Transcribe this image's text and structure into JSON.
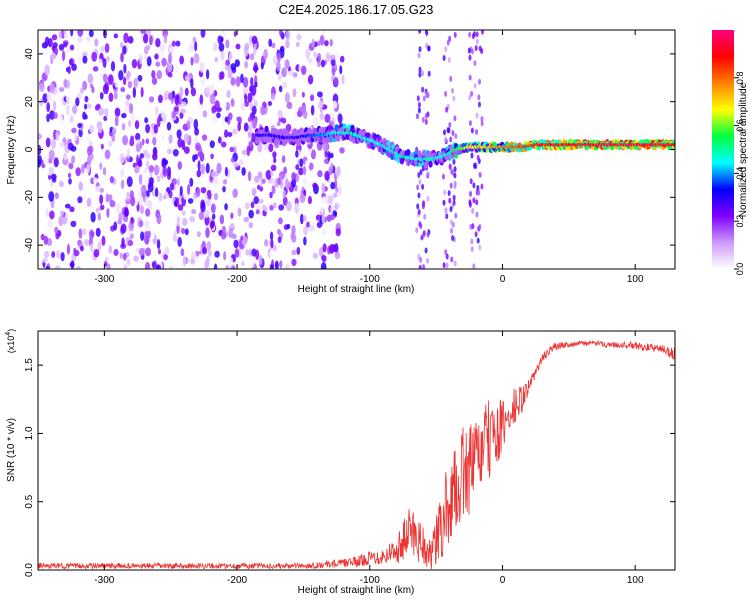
{
  "figure": {
    "title": "C2E4.2025.186.17.05.G23"
  },
  "chart_data": [
    {
      "type": "heatmap",
      "title": "C2E4.2025.186.17.05.G23",
      "xlabel": "Height of straight line (km)",
      "ylabel": "Frequency (Hz)",
      "xlim": [
        -350,
        130
      ],
      "ylim": [
        -50,
        50
      ],
      "x_ticks": [
        -300,
        -200,
        -100,
        0,
        100
      ],
      "y_ticks": [
        -40,
        -20,
        0,
        20,
        40
      ],
      "colorbar": {
        "label": "Normalized spectral amplitude",
        "range": [
          0,
          1
        ],
        "ticks": [
          0.0,
          0.2,
          0.4,
          0.6,
          0.8
        ],
        "colors": [
          "#ffffff",
          "#cc99ff",
          "#8000ff",
          "#0000ff",
          "#00ffff",
          "#00ff40",
          "#ffff00",
          "#ff8000",
          "#ff0000",
          "#ff0080"
        ]
      },
      "ridge": {
        "x": [
          -185,
          -175,
          -165,
          -155,
          -145,
          -135,
          -125,
          -115,
          -105,
          -95,
          -85,
          -75,
          -65,
          -55,
          -45,
          -35,
          -25,
          -15,
          -5,
          5,
          15,
          25,
          40,
          60,
          80,
          100,
          120,
          130
        ],
        "y": [
          6,
          6,
          5,
          5,
          6,
          6,
          7,
          7,
          5,
          3,
          0,
          -3,
          -4,
          -4,
          -3,
          0,
          1,
          1,
          1,
          1,
          1,
          2,
          2,
          2,
          2,
          2,
          2,
          2
        ],
        "amplitude": [
          0.3,
          0.3,
          0.3,
          0.3,
          0.35,
          0.4,
          0.45,
          0.5,
          0.45,
          0.45,
          0.45,
          0.5,
          0.45,
          0.5,
          0.45,
          0.55,
          0.65,
          0.7,
          0.75,
          0.8,
          0.85,
          0.88,
          0.9,
          0.92,
          0.95,
          0.95,
          0.92,
          0.9
        ]
      },
      "noise_region": {
        "x_range": [
          -350,
          -120
        ],
        "amplitude_range": [
          0.0,
          0.3
        ]
      }
    },
    {
      "type": "line",
      "xlabel": "Height of straight line (km)",
      "ylabel": "SNR (10 * v/v)",
      "y_multiplier_label": "(x10",
      "y_multiplier_exp": "4",
      "y_multiplier_close": ")",
      "xlim": [
        -350,
        130
      ],
      "ylim": [
        0,
        1.75
      ],
      "x_ticks": [
        -300,
        -200,
        -100,
        0,
        100
      ],
      "y_ticks": [
        0.0,
        0.5,
        1.0,
        1.5
      ],
      "y_tick_labels": [
        "0.0",
        "0.5",
        "1.0",
        "1.5"
      ],
      "line_color": "#ee3333",
      "series": [
        {
          "x": [
            -350,
            -300,
            -250,
            -200,
            -150,
            -120,
            -110,
            -100,
            -90,
            -80,
            -75,
            -70,
            -65,
            -60,
            -55,
            -50,
            -45,
            -40,
            -35,
            -30,
            -25,
            -20,
            -15,
            -10,
            -5,
            0,
            5,
            10,
            15,
            20,
            25,
            30,
            35,
            40,
            50,
            60,
            70,
            80,
            90,
            100,
            110,
            120,
            130
          ],
          "y": [
            0.03,
            0.03,
            0.03,
            0.03,
            0.03,
            0.05,
            0.06,
            0.09,
            0.1,
            0.15,
            0.2,
            0.3,
            0.25,
            0.2,
            0.1,
            0.2,
            0.35,
            0.5,
            0.6,
            0.7,
            0.75,
            0.8,
            0.9,
            0.95,
            1.0,
            1.05,
            1.1,
            1.2,
            1.25,
            1.35,
            1.45,
            1.55,
            1.6,
            1.64,
            1.65,
            1.66,
            1.66,
            1.65,
            1.65,
            1.64,
            1.63,
            1.62,
            1.58
          ],
          "noise": [
            0.02,
            0.02,
            0.02,
            0.02,
            0.02,
            0.03,
            0.04,
            0.05,
            0.06,
            0.1,
            0.15,
            0.2,
            0.2,
            0.15,
            0.12,
            0.2,
            0.3,
            0.3,
            0.3,
            0.35,
            0.35,
            0.3,
            0.3,
            0.3,
            0.25,
            0.2,
            0.2,
            0.15,
            0.1,
            0.05,
            0.04,
            0.03,
            0.03,
            0.03,
            0.02,
            0.02,
            0.02,
            0.02,
            0.02,
            0.03,
            0.03,
            0.03,
            0.05
          ]
        }
      ]
    }
  ]
}
